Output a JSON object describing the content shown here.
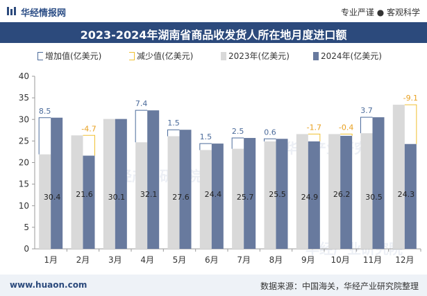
{
  "header": {
    "brand": "华经情报网",
    "tagline": "专业严谨 ● 客观科学"
  },
  "footer": {
    "website": "www.huaon.com",
    "source": "数据来源：中国海关，华经产业研究院整理"
  },
  "watermarks": [
    "华经产业研究院",
    "华经产业研究院",
    "华经产业研究院"
  ],
  "colors": {
    "bar2023": "#d9d9d9",
    "bar2024": "#687a9e",
    "increase": "#4a6a9a",
    "decrease": "#f0c030",
    "increase_label": "#4a6a9a",
    "decrease_label": "#e8a020",
    "title_bg": "#2c4a7c"
  },
  "chart_data": {
    "type": "bar",
    "title": "2023-2024年湖南省商品收发货人所在地月度进口额",
    "categories": [
      "1月",
      "2月",
      "3月",
      "4月",
      "5月",
      "6月",
      "7月",
      "8月",
      "9月",
      "10月",
      "11月",
      "12月"
    ],
    "series": [
      {
        "name": "2023年(亿美元)",
        "values": [
          21.9,
          26.3,
          30.1,
          24.7,
          26.1,
          22.9,
          23.2,
          24.9,
          26.6,
          26.6,
          26.8,
          33.4
        ]
      },
      {
        "name": "2024年(亿美元)",
        "values": [
          30.4,
          21.6,
          30.1,
          32.1,
          27.6,
          24.4,
          25.7,
          25.5,
          24.9,
          26.2,
          30.5,
          24.3
        ]
      }
    ],
    "change": {
      "increase_name": "增加值(亿美元)",
      "decrease_name": "减少值(亿美元)",
      "labels": [
        "8.5",
        "-4.7",
        "",
        "7.4",
        "1.5",
        "1.5",
        "2.5",
        "0.6",
        "-1.7",
        "-0.4",
        "3.7",
        "-9.1"
      ]
    },
    "data_labels_2024": [
      "30.4",
      "21.6",
      "30.1",
      "32.1",
      "27.6",
      "24.4",
      "25.7",
      "25.5",
      "24.9",
      "26.2",
      "30.5",
      "24.3"
    ],
    "ylim": [
      0,
      40
    ],
    "yticks": [
      "0",
      "5",
      "10",
      "15",
      "20",
      "25",
      "30",
      "35",
      "40"
    ],
    "legend_position": "top",
    "grid": false
  }
}
